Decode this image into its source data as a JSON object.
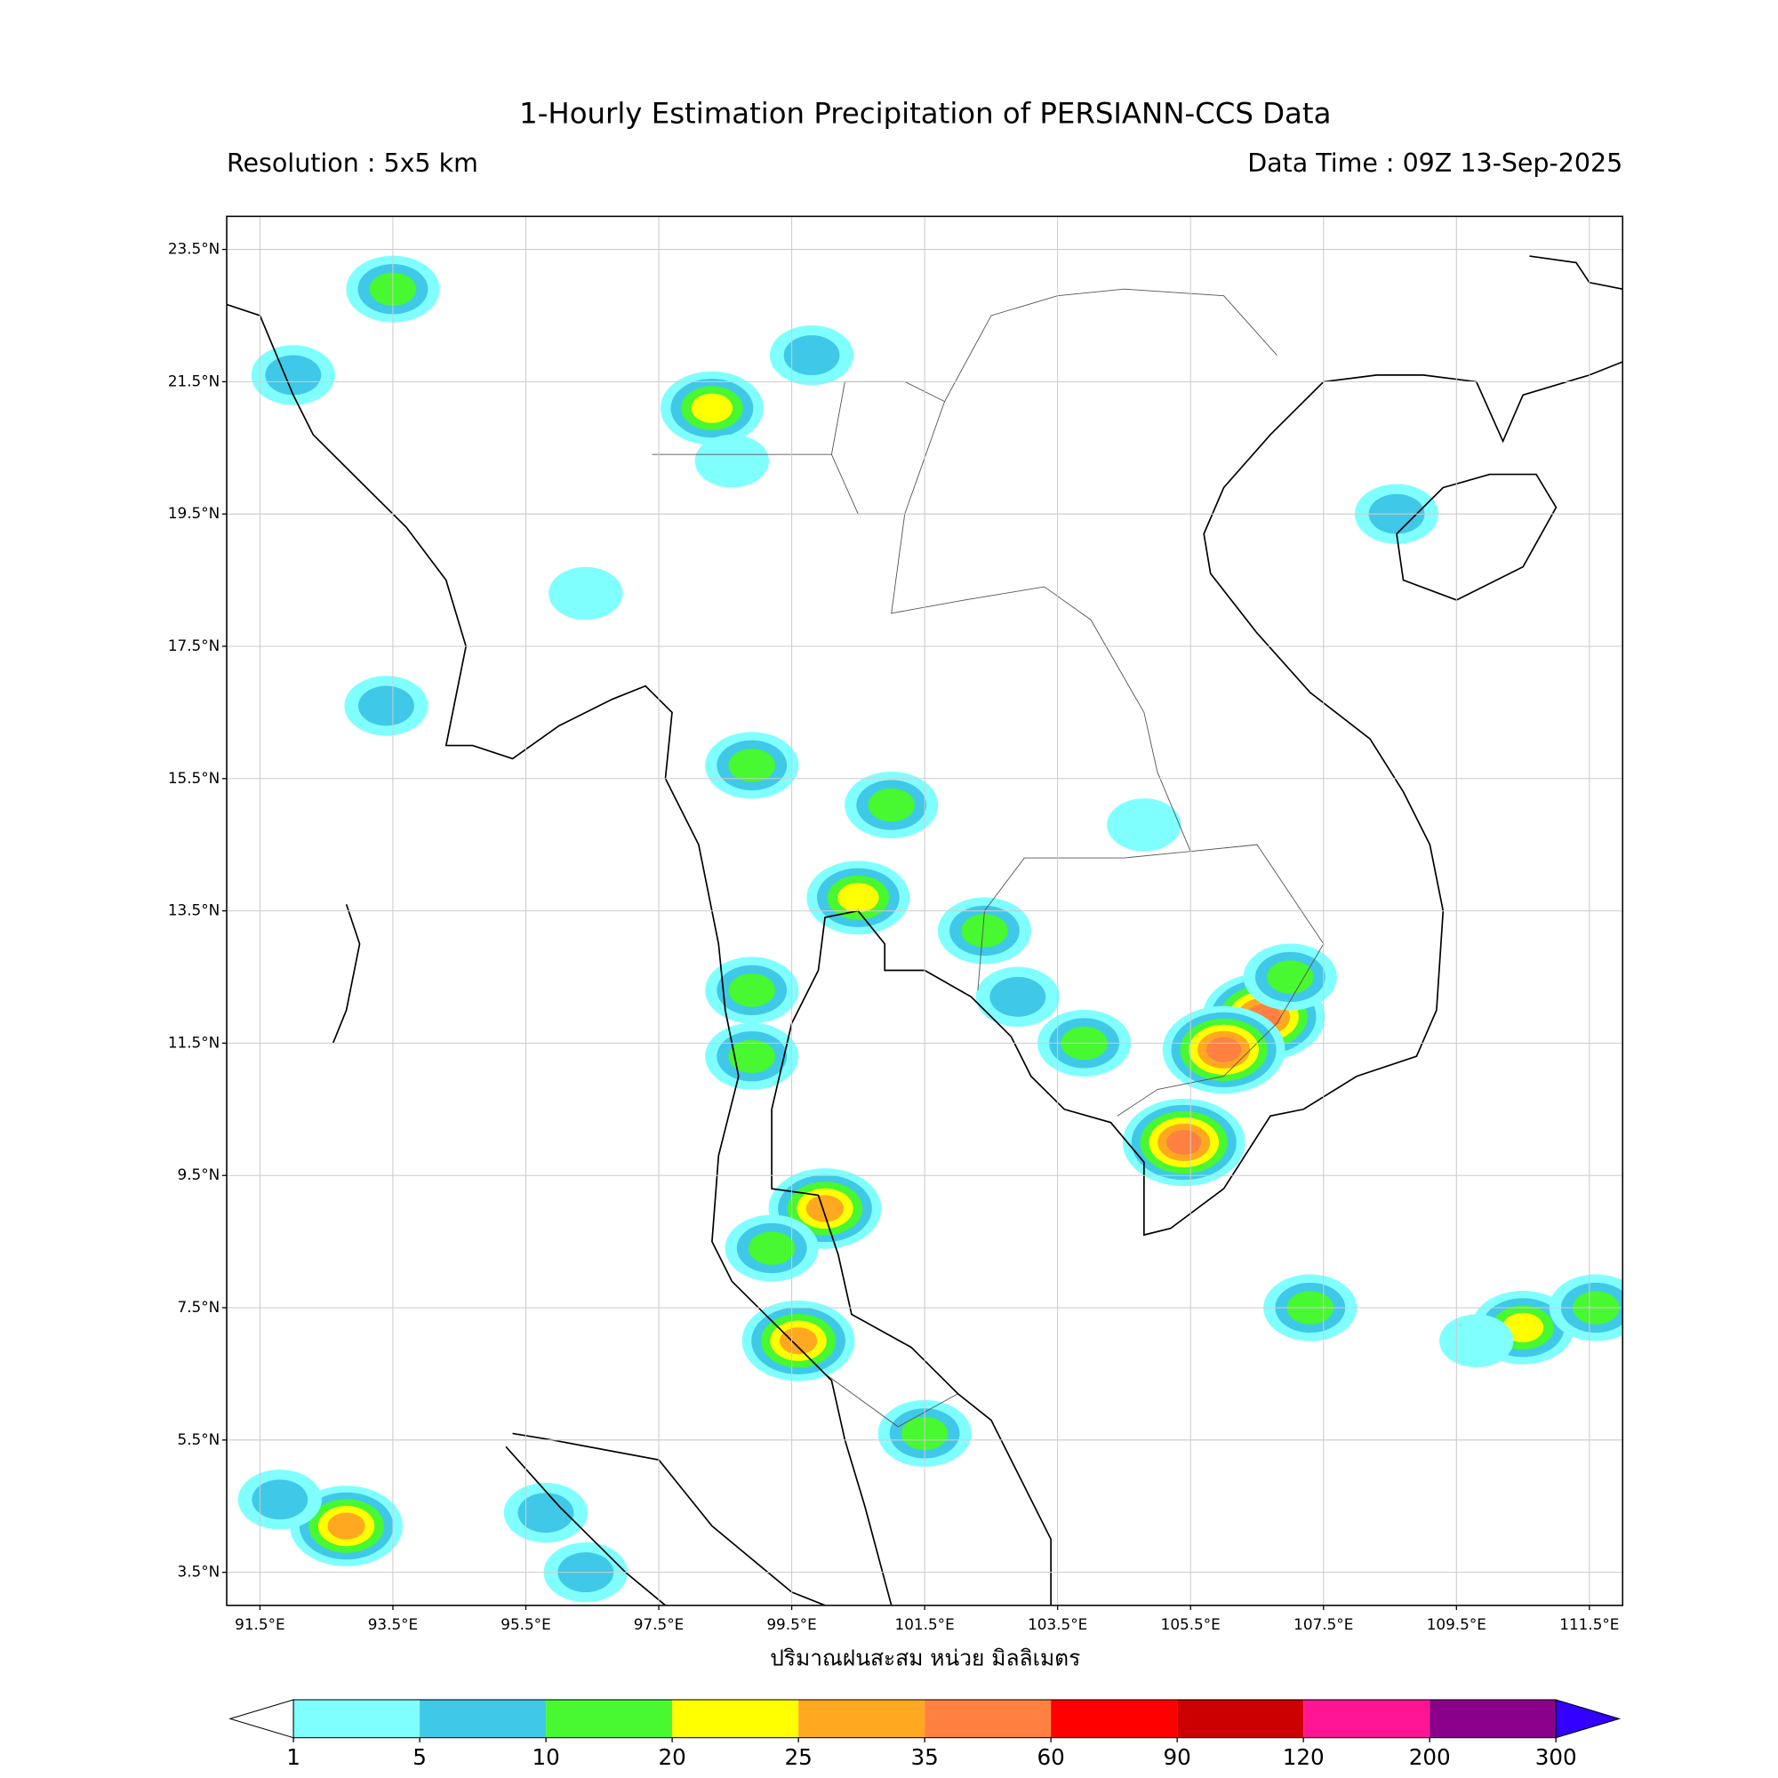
{
  "header": {
    "title": "1-Hourly Estimation Precipitation of PERSIANN-CCS Data",
    "resolution": "Resolution : 5x5 km",
    "data_time": "Data Time : 09Z 13-Sep-2025"
  },
  "map": {
    "lon_range": [
      91,
      112
    ],
    "lat_range": [
      3,
      24
    ],
    "grid": true,
    "lon_ticks": [
      {
        "value": 91.5,
        "label": "91.5°E"
      },
      {
        "value": 93.5,
        "label": "93.5°E"
      },
      {
        "value": 95.5,
        "label": "95.5°E"
      },
      {
        "value": 97.5,
        "label": "97.5°E"
      },
      {
        "value": 99.5,
        "label": "99.5°E"
      },
      {
        "value": 101.5,
        "label": "101.5°E"
      },
      {
        "value": 103.5,
        "label": "103.5°E"
      },
      {
        "value": 105.5,
        "label": "105.5°E"
      },
      {
        "value": 107.5,
        "label": "107.5°E"
      },
      {
        "value": 109.5,
        "label": "109.5°E"
      },
      {
        "value": 111.5,
        "label": "111.5°E"
      }
    ],
    "lat_ticks": [
      {
        "value": 23.5,
        "label": "23.5°N"
      },
      {
        "value": 21.5,
        "label": "21.5°N"
      },
      {
        "value": 19.5,
        "label": "19.5°N"
      },
      {
        "value": 17.5,
        "label": "17.5°N"
      },
      {
        "value": 15.5,
        "label": "15.5°N"
      },
      {
        "value": 13.5,
        "label": "13.5°N"
      },
      {
        "value": 11.5,
        "label": "11.5°N"
      },
      {
        "value": 9.5,
        "label": "9.5°N"
      },
      {
        "value": 7.5,
        "label": "7.5°N"
      },
      {
        "value": 5.5,
        "label": "5.5°N"
      },
      {
        "value": 3.5,
        "label": "3.5°N"
      }
    ],
    "x_label": "ปริมาณฝนสะสม หน่วย มิลลิเมตร",
    "rain_cells": [
      {
        "lon": 106.6,
        "lat": 11.9,
        "mm": 40
      },
      {
        "lon": 106.0,
        "lat": 11.4,
        "mm": 35
      },
      {
        "lon": 105.4,
        "lat": 10.0,
        "mm": 35
      },
      {
        "lon": 107.0,
        "lat": 12.5,
        "mm": 12
      },
      {
        "lon": 103.9,
        "lat": 11.5,
        "mm": 12
      },
      {
        "lon": 102.9,
        "lat": 12.2,
        "mm": 8
      },
      {
        "lon": 100.0,
        "lat": 9.0,
        "mm": 30
      },
      {
        "lon": 99.6,
        "lat": 7.0,
        "mm": 25
      },
      {
        "lon": 101.5,
        "lat": 5.6,
        "mm": 12
      },
      {
        "lon": 98.3,
        "lat": 21.1,
        "mm": 20
      },
      {
        "lon": 92.8,
        "lat": 4.2,
        "mm": 30
      },
      {
        "lon": 93.5,
        "lat": 22.9,
        "mm": 15
      },
      {
        "lon": 108.6,
        "lat": 19.5,
        "mm": 6
      },
      {
        "lon": 110.5,
        "lat": 7.2,
        "mm": 20
      },
      {
        "lon": 111.6,
        "lat": 7.5,
        "mm": 12
      },
      {
        "lon": 100.5,
        "lat": 13.7,
        "mm": 20
      },
      {
        "lon": 98.9,
        "lat": 12.3,
        "mm": 12
      },
      {
        "lon": 98.9,
        "lat": 11.3,
        "mm": 12
      },
      {
        "lon": 99.2,
        "lat": 8.4,
        "mm": 12
      },
      {
        "lon": 96.4,
        "lat": 3.5,
        "mm": 6
      },
      {
        "lon": 91.8,
        "lat": 4.6,
        "mm": 6
      },
      {
        "lon": 95.8,
        "lat": 4.4,
        "mm": 6
      },
      {
        "lon": 98.9,
        "lat": 15.7,
        "mm": 12
      },
      {
        "lon": 99.8,
        "lat": 21.9,
        "mm": 6
      },
      {
        "lon": 93.4,
        "lat": 16.6,
        "mm": 6
      },
      {
        "lon": 107.3,
        "lat": 7.5,
        "mm": 10
      },
      {
        "lon": 109.8,
        "lat": 7.0,
        "mm": 4
      },
      {
        "lon": 92.0,
        "lat": 21.6,
        "mm": 6
      },
      {
        "lon": 96.4,
        "lat": 18.3,
        "mm": 4
      },
      {
        "lon": 101.0,
        "lat": 15.1,
        "mm": 10
      },
      {
        "lon": 104.8,
        "lat": 14.8,
        "mm": 4
      },
      {
        "lon": 102.4,
        "lat": 13.2,
        "mm": 15
      },
      {
        "lon": 98.6,
        "lat": 20.3,
        "mm": 4
      }
    ]
  },
  "colorbar": {
    "levels": [
      1,
      5,
      10,
      20,
      25,
      35,
      60,
      90,
      120,
      200,
      300
    ],
    "colors": [
      "#80ffff",
      "#40c8e8",
      "#48f830",
      "#ffff00",
      "#ffa820",
      "#ff8040",
      "#ff0000",
      "#cc0000",
      "#ff1493",
      "#8b008b"
    ],
    "under_color": "#ffffff",
    "over_color": "#3300ff"
  }
}
